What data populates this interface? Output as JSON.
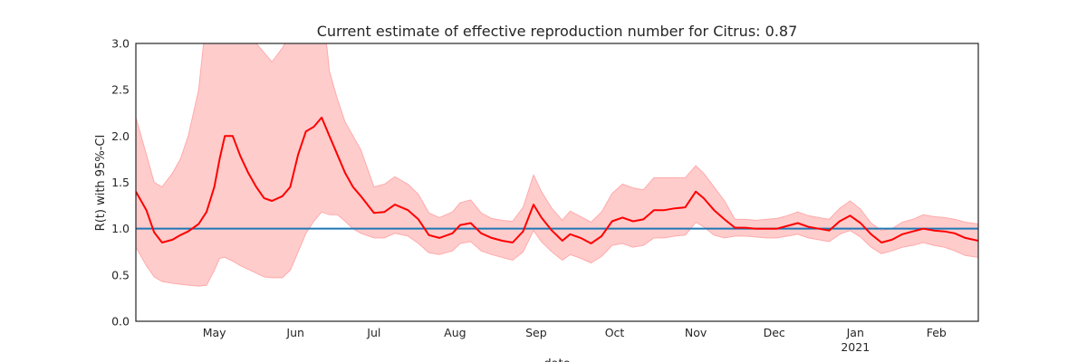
{
  "chart_data": {
    "type": "line",
    "title": "Current estimate of effective reproduction number for Citrus: 0.87",
    "xlabel": "date",
    "ylabel": "R(t) with 95%-CI",
    "ylim": [
      0,
      3
    ],
    "xlim": [
      "2020-04-01",
      "2021-02-17"
    ],
    "yticks": [
      "0.0",
      "0.5",
      "1.0",
      "1.5",
      "2.0",
      "2.5",
      "3.0"
    ],
    "xticks": [
      {
        "date": "2020-05-01",
        "label": "May",
        "sublabel": ""
      },
      {
        "date": "2020-06-01",
        "label": "Jun",
        "sublabel": ""
      },
      {
        "date": "2020-07-01",
        "label": "Jul",
        "sublabel": ""
      },
      {
        "date": "2020-08-01",
        "label": "Aug",
        "sublabel": ""
      },
      {
        "date": "2020-09-01",
        "label": "Sep",
        "sublabel": ""
      },
      {
        "date": "2020-10-01",
        "label": "Oct",
        "sublabel": ""
      },
      {
        "date": "2020-11-01",
        "label": "Nov",
        "sublabel": ""
      },
      {
        "date": "2020-12-01",
        "label": "Dec",
        "sublabel": ""
      },
      {
        "date": "2021-01-01",
        "label": "Jan",
        "sublabel": "2021"
      },
      {
        "date": "2021-02-01",
        "label": "Feb",
        "sublabel": ""
      }
    ],
    "grid": false,
    "reference_line": 1.0,
    "colors": {
      "estimate": "#ff0000",
      "ci_fill": "#ffcccc",
      "ci_edge": "#ffaaaa",
      "reference": "#1f77b4",
      "axes": "#262626"
    },
    "series": [
      {
        "x": [
          "2020-04-01",
          "2020-04-05",
          "2020-04-08",
          "2020-04-11",
          "2020-04-15",
          "2020-04-18",
          "2020-04-21",
          "2020-04-25",
          "2020-04-28",
          "2020-05-01",
          "2020-05-03",
          "2020-05-05",
          "2020-05-08",
          "2020-05-11",
          "2020-05-14",
          "2020-05-17",
          "2020-05-20",
          "2020-05-23",
          "2020-05-27",
          "2020-05-30",
          "2020-06-02",
          "2020-06-05",
          "2020-06-08",
          "2020-06-11",
          "2020-06-14",
          "2020-06-17",
          "2020-06-20",
          "2020-06-23",
          "2020-06-26",
          "2020-07-01",
          "2020-07-05",
          "2020-07-09",
          "2020-07-14",
          "2020-07-18",
          "2020-07-22",
          "2020-07-26",
          "2020-07-31",
          "2020-08-03",
          "2020-08-07",
          "2020-08-11",
          "2020-08-15",
          "2020-08-19",
          "2020-08-23",
          "2020-08-27",
          "2020-08-31",
          "2020-09-03",
          "2020-09-07",
          "2020-09-11",
          "2020-09-14",
          "2020-09-18",
          "2020-09-22",
          "2020-09-26",
          "2020-09-30",
          "2020-10-04",
          "2020-10-08",
          "2020-10-12",
          "2020-10-16",
          "2020-10-20",
          "2020-10-24",
          "2020-10-28",
          "2020-11-01",
          "2020-11-04",
          "2020-11-08",
          "2020-11-12",
          "2020-11-16",
          "2020-11-20",
          "2020-11-24",
          "2020-11-28",
          "2020-12-02",
          "2020-12-06",
          "2020-12-10",
          "2020-12-14",
          "2020-12-18",
          "2020-12-22",
          "2020-12-26",
          "2020-12-30",
          "2021-01-03",
          "2021-01-07",
          "2021-01-11",
          "2021-01-15",
          "2021-01-19",
          "2021-01-23",
          "2021-01-27",
          "2021-01-31",
          "2021-02-04",
          "2021-02-08",
          "2021-02-12",
          "2021-02-17"
        ],
        "estimate": [
          1.4,
          1.2,
          0.96,
          0.85,
          0.88,
          0.93,
          0.97,
          1.05,
          1.18,
          1.45,
          1.75,
          2.0,
          2.0,
          1.78,
          1.6,
          1.45,
          1.33,
          1.3,
          1.35,
          1.45,
          1.8,
          2.05,
          2.1,
          2.2,
          2.0,
          1.8,
          1.6,
          1.45,
          1.35,
          1.17,
          1.18,
          1.26,
          1.2,
          1.1,
          0.93,
          0.9,
          0.95,
          1.04,
          1.06,
          0.95,
          0.9,
          0.87,
          0.85,
          0.97,
          1.26,
          1.12,
          0.98,
          0.87,
          0.94,
          0.9,
          0.84,
          0.92,
          1.08,
          1.12,
          1.08,
          1.1,
          1.2,
          1.2,
          1.22,
          1.23,
          1.4,
          1.33,
          1.2,
          1.1,
          1.01,
          1.01,
          1.0,
          1.0,
          1.0,
          1.03,
          1.06,
          1.02,
          1.0,
          0.98,
          1.08,
          1.14,
          1.06,
          0.94,
          0.85,
          0.88,
          0.94,
          0.97,
          1.0,
          0.98,
          0.97,
          0.95,
          0.9,
          0.87
        ],
        "lower": [
          0.8,
          0.6,
          0.48,
          0.43,
          0.41,
          0.4,
          0.39,
          0.38,
          0.39,
          0.55,
          0.68,
          0.69,
          0.65,
          0.6,
          0.56,
          0.52,
          0.48,
          0.47,
          0.47,
          0.55,
          0.75,
          0.95,
          1.08,
          1.18,
          1.15,
          1.15,
          1.08,
          1.0,
          0.95,
          0.9,
          0.9,
          0.95,
          0.92,
          0.84,
          0.74,
          0.72,
          0.76,
          0.84,
          0.86,
          0.76,
          0.72,
          0.69,
          0.66,
          0.75,
          0.98,
          0.86,
          0.75,
          0.66,
          0.72,
          0.68,
          0.63,
          0.7,
          0.82,
          0.84,
          0.8,
          0.82,
          0.9,
          0.9,
          0.92,
          0.93,
          1.07,
          1.02,
          0.93,
          0.9,
          0.92,
          0.92,
          0.91,
          0.9,
          0.9,
          0.92,
          0.94,
          0.9,
          0.88,
          0.86,
          0.94,
          0.98,
          0.91,
          0.8,
          0.73,
          0.76,
          0.8,
          0.82,
          0.85,
          0.82,
          0.8,
          0.76,
          0.71,
          0.69
        ],
        "upper": [
          2.2,
          1.8,
          1.5,
          1.45,
          1.6,
          1.75,
          2.0,
          2.5,
          3.3,
          4.0,
          4.1,
          4.0,
          3.7,
          3.2,
          3.1,
          3.0,
          2.9,
          2.8,
          2.95,
          3.1,
          3.2,
          3.4,
          3.6,
          3.5,
          2.7,
          2.4,
          2.15,
          2.0,
          1.85,
          1.45,
          1.48,
          1.56,
          1.48,
          1.37,
          1.17,
          1.12,
          1.18,
          1.28,
          1.31,
          1.17,
          1.11,
          1.09,
          1.08,
          1.23,
          1.58,
          1.4,
          1.22,
          1.09,
          1.19,
          1.13,
          1.07,
          1.18,
          1.38,
          1.48,
          1.44,
          1.42,
          1.55,
          1.55,
          1.55,
          1.55,
          1.68,
          1.6,
          1.45,
          1.3,
          1.1,
          1.1,
          1.09,
          1.1,
          1.11,
          1.14,
          1.18,
          1.14,
          1.12,
          1.1,
          1.22,
          1.3,
          1.21,
          1.06,
          0.98,
          1.0,
          1.07,
          1.1,
          1.15,
          1.13,
          1.12,
          1.1,
          1.07,
          1.05
        ]
      }
    ]
  }
}
